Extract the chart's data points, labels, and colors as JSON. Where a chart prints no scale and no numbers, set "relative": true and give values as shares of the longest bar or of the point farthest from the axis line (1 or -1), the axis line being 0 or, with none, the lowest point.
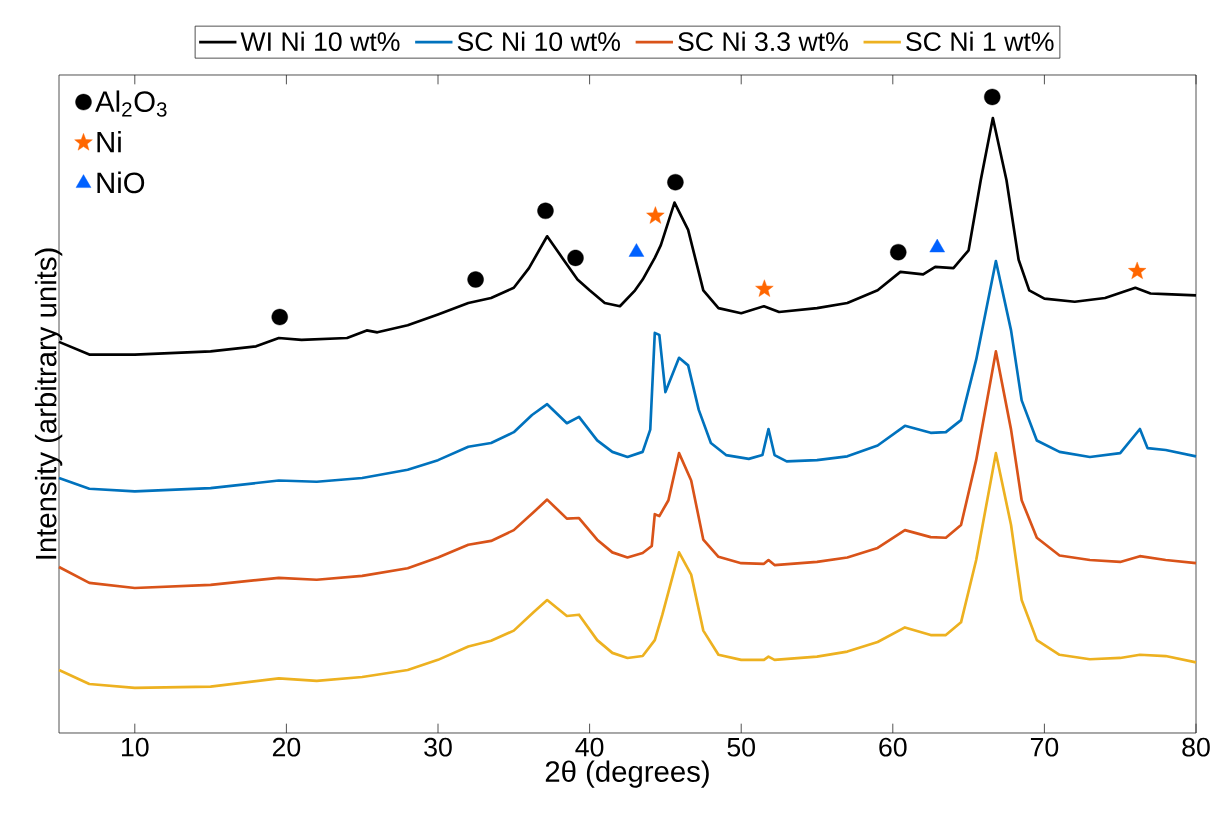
{
  "chart_data": {
    "type": "line",
    "relative": true,
    "xlabel": "2θ (degrees)",
    "ylabel": "Intensity (arbitrary units)",
    "xlim": [
      5,
      80
    ],
    "xticks": [
      10,
      20,
      30,
      40,
      50,
      60,
      70,
      80
    ],
    "legend": "top",
    "series": [
      {
        "name": "WI Ni 10 wt%",
        "color": "#000000",
        "x": [
          5,
          7,
          10,
          15,
          18,
          19.5,
          21,
          24,
          25.3,
          26,
          28,
          30,
          32,
          33.5,
          35,
          36,
          37.2,
          38.2,
          39.2,
          40,
          41,
          42,
          43,
          43.5,
          44.3,
          44.7,
          45.6,
          46.5,
          47.5,
          48.5,
          50,
          51.5,
          52.5,
          55,
          57,
          59,
          60.5,
          62,
          62.8,
          64,
          65,
          65.8,
          66.6,
          67.5,
          68.3,
          69,
          70,
          72,
          74,
          76,
          77,
          78,
          80
        ],
        "values": [
          0.615,
          0.595,
          0.595,
          0.6,
          0.608,
          0.621,
          0.618,
          0.621,
          0.633,
          0.63,
          0.641,
          0.658,
          0.676,
          0.684,
          0.7,
          0.731,
          0.781,
          0.747,
          0.713,
          0.696,
          0.676,
          0.671,
          0.696,
          0.713,
          0.747,
          0.767,
          0.834,
          0.791,
          0.696,
          0.668,
          0.66,
          0.671,
          0.662,
          0.668,
          0.676,
          0.696,
          0.725,
          0.721,
          0.733,
          0.731,
          0.759,
          0.869,
          0.967,
          0.869,
          0.744,
          0.696,
          0.683,
          0.678,
          0.684,
          0.7,
          0.691,
          0.69,
          0.688
        ]
      },
      {
        "name": "SC Ni 10 wt%",
        "color": "#0072bd",
        "x": [
          5,
          7,
          10,
          15,
          19.5,
          22,
          25,
          28,
          30,
          32,
          33.5,
          35,
          36.2,
          37.2,
          38.5,
          39.3,
          40.5,
          41.5,
          42.5,
          43.5,
          44.0,
          44.3,
          44.6,
          45,
          45.9,
          46.5,
          47.2,
          48,
          49,
          50.5,
          51.4,
          51.8,
          52.2,
          53,
          55,
          57,
          59,
          60.8,
          62.5,
          63.5,
          64.5,
          65.5,
          66.8,
          67.8,
          68.5,
          69.5,
          71,
          73,
          75,
          76.3,
          76.8,
          78,
          80
        ],
        "values": [
          0.401,
          0.384,
          0.38,
          0.385,
          0.397,
          0.395,
          0.401,
          0.414,
          0.429,
          0.45,
          0.456,
          0.473,
          0.5,
          0.517,
          0.487,
          0.497,
          0.46,
          0.442,
          0.434,
          0.442,
          0.477,
          0.629,
          0.626,
          0.536,
          0.59,
          0.578,
          0.508,
          0.456,
          0.437,
          0.431,
          0.437,
          0.478,
          0.437,
          0.427,
          0.429,
          0.435,
          0.452,
          0.483,
          0.472,
          0.473,
          0.492,
          0.587,
          0.742,
          0.633,
          0.523,
          0.46,
          0.442,
          0.434,
          0.44,
          0.478,
          0.448,
          0.445,
          0.435
        ]
      },
      {
        "name": "SC Ni 3.3 wt%",
        "color": "#d95319",
        "x": [
          5,
          7,
          10,
          15,
          19.5,
          22,
          25,
          28,
          30,
          32,
          33.5,
          35,
          36.3,
          37.2,
          38.5,
          39.3,
          40.5,
          41.5,
          42.5,
          43.5,
          44.1,
          44.3,
          44.6,
          45.2,
          45.9,
          46.7,
          47.5,
          48.5,
          50,
          51.5,
          51.8,
          52.2,
          55,
          57,
          59,
          60.8,
          62.5,
          63.5,
          64.5,
          65.5,
          66.8,
          67.8,
          68.5,
          69.5,
          71,
          73,
          75,
          76.3,
          78,
          80
        ],
        "values": [
          0.261,
          0.236,
          0.228,
          0.233,
          0.244,
          0.241,
          0.247,
          0.259,
          0.276,
          0.296,
          0.302,
          0.319,
          0.347,
          0.367,
          0.337,
          0.338,
          0.304,
          0.284,
          0.276,
          0.283,
          0.294,
          0.344,
          0.341,
          0.366,
          0.44,
          0.397,
          0.304,
          0.277,
          0.267,
          0.266,
          0.272,
          0.264,
          0.269,
          0.276,
          0.291,
          0.319,
          0.308,
          0.307,
          0.327,
          0.429,
          0.6,
          0.477,
          0.366,
          0.307,
          0.279,
          0.272,
          0.269,
          0.278,
          0.272,
          0.267
        ]
      },
      {
        "name": "SC Ni 1 wt%",
        "color": "#edb120",
        "x": [
          5,
          7,
          10,
          15,
          19.5,
          22,
          25,
          28,
          30,
          32,
          33.5,
          35,
          36.3,
          37.2,
          38.5,
          39.3,
          40.5,
          41.5,
          42.5,
          43.5,
          44.3,
          44.8,
          45.9,
          46.7,
          47.5,
          48.5,
          50,
          51.5,
          51.8,
          52.2,
          55,
          57,
          59,
          60.8,
          62.5,
          63.5,
          64.5,
          65.5,
          66.8,
          67.8,
          68.5,
          69.5,
          71,
          73,
          75,
          76.3,
          78,
          80
        ],
        "values": [
          0.099,
          0.077,
          0.071,
          0.073,
          0.086,
          0.082,
          0.088,
          0.099,
          0.115,
          0.136,
          0.145,
          0.161,
          0.19,
          0.209,
          0.184,
          0.186,
          0.146,
          0.126,
          0.118,
          0.121,
          0.146,
          0.186,
          0.284,
          0.249,
          0.161,
          0.123,
          0.115,
          0.115,
          0.12,
          0.115,
          0.12,
          0.128,
          0.143,
          0.166,
          0.154,
          0.154,
          0.174,
          0.272,
          0.44,
          0.327,
          0.209,
          0.146,
          0.123,
          0.116,
          0.118,
          0.123,
          0.121,
          0.111
        ]
      },
      {
        "name": "Al$_{2}$O$_{3}$",
        "type": "scatter",
        "marker": "circle",
        "color": "#000000",
        "x": [
          19.56,
          32.48,
          37.09,
          39.07,
          45.66,
          60.36,
          66.56
        ],
        "values": [
          0.654,
          0.713,
          0.821,
          0.747,
          0.866,
          0.756,
          1.0
        ]
      },
      {
        "name": "Ni",
        "type": "scatter",
        "marker": "star",
        "color": "#ff6600",
        "x": [
          44.34,
          51.53,
          76.12
        ],
        "values": [
          0.813,
          0.698,
          0.726
        ]
      },
      {
        "name": "NiO",
        "type": "scatter",
        "marker": "triangle",
        "color": "#0061ff",
        "x": [
          43.09,
          62.93
        ],
        "values": [
          0.756,
          0.763
        ]
      }
    ]
  }
}
